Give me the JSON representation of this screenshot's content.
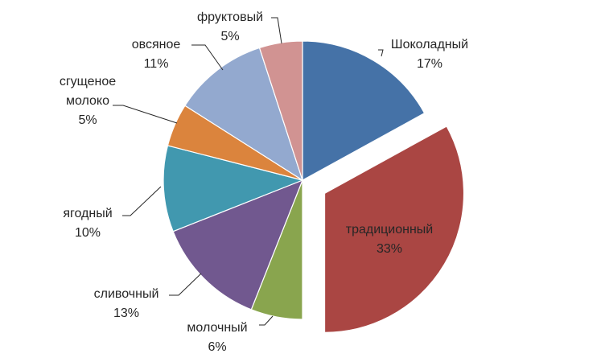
{
  "chart_data": {
    "type": "pie",
    "title": "",
    "slices": [
      {
        "label": "Шоколадный",
        "value": 17,
        "value_label": "17%",
        "color": "#4572A7",
        "exploded": false,
        "label_position": "outside"
      },
      {
        "label": "традиционный",
        "value": 33,
        "value_label": "33%",
        "color": "#AA4643",
        "exploded": true,
        "label_position": "inside"
      },
      {
        "label": "молочный",
        "value": 6,
        "value_label": "6%",
        "color": "#89A54E",
        "exploded": false,
        "label_position": "outside"
      },
      {
        "label": "сливочный",
        "value": 13,
        "value_label": "13%",
        "color": "#71588F",
        "exploded": false,
        "label_position": "outside"
      },
      {
        "label": "ягодный",
        "value": 10,
        "value_label": "10%",
        "color": "#4198AF",
        "exploded": false,
        "label_position": "outside"
      },
      {
        "label": "сгущеное\nмолоко",
        "value": 5,
        "value_label": "5%",
        "color": "#DB843D",
        "exploded": false,
        "label_position": "outside"
      },
      {
        "label": "овсяное",
        "value": 11,
        "value_label": "11%",
        "color": "#93A9CF",
        "exploded": false,
        "label_position": "outside"
      },
      {
        "label": "фруктовый",
        "value": 5,
        "value_label": "5%",
        "color": "#D19392",
        "exploded": false,
        "label_position": "outside"
      }
    ],
    "start_angle_deg": 0,
    "direction": "clockwise",
    "legend": "none"
  }
}
